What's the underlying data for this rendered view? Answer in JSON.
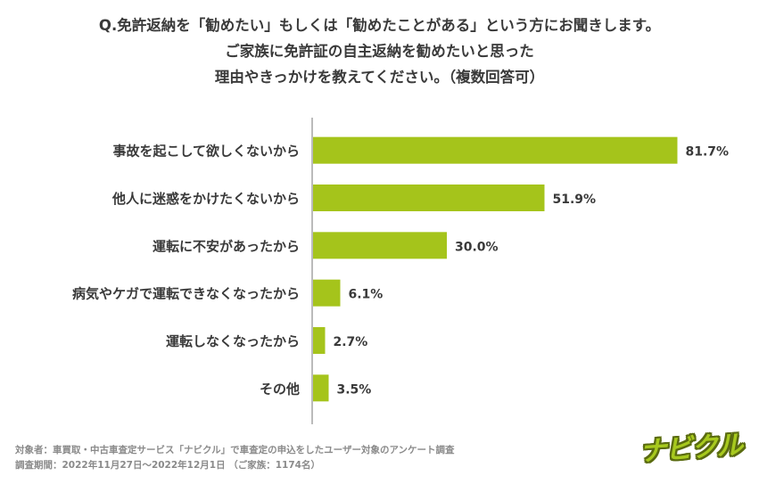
{
  "title": {
    "line1": "Q.免許返納を「勧めたい」もしくは「勧めたことがある」という方にお聞きします。",
    "line2": "ご家族に免許証の自主返納を勧めたいと思った",
    "line3": "理由やきっかけを教えてください。（複数回答可）"
  },
  "chart_data": {
    "type": "bar",
    "orientation": "horizontal",
    "categories": [
      "事故を起こして欲しくないから",
      "他人に迷惑をかけたくないから",
      "運転に不安があったから",
      "病気やケガで運転できなくなったから",
      "運転しなくなったから",
      "その他"
    ],
    "values": [
      81.7,
      51.9,
      30.0,
      6.1,
      2.7,
      3.5
    ],
    "value_labels": [
      "81.7%",
      "51.9%",
      "30.0%",
      "6.1%",
      "2.7%",
      "3.5%"
    ],
    "xlim": [
      0,
      100
    ],
    "grid": false,
    "bar_color": "#a5c41b",
    "axis_color": "#bbbbbb"
  },
  "footer": {
    "line1": "対象者：車買取・中古車査定サービス「ナビクル」で車査定の申込をしたユーザー対象のアンケート調査",
    "line2": "調査期間：2022年11月27日〜2022年12月1日 （ご家族：1174名）"
  },
  "logo": {
    "text": "ナビクル",
    "color": "#a7c91e"
  }
}
